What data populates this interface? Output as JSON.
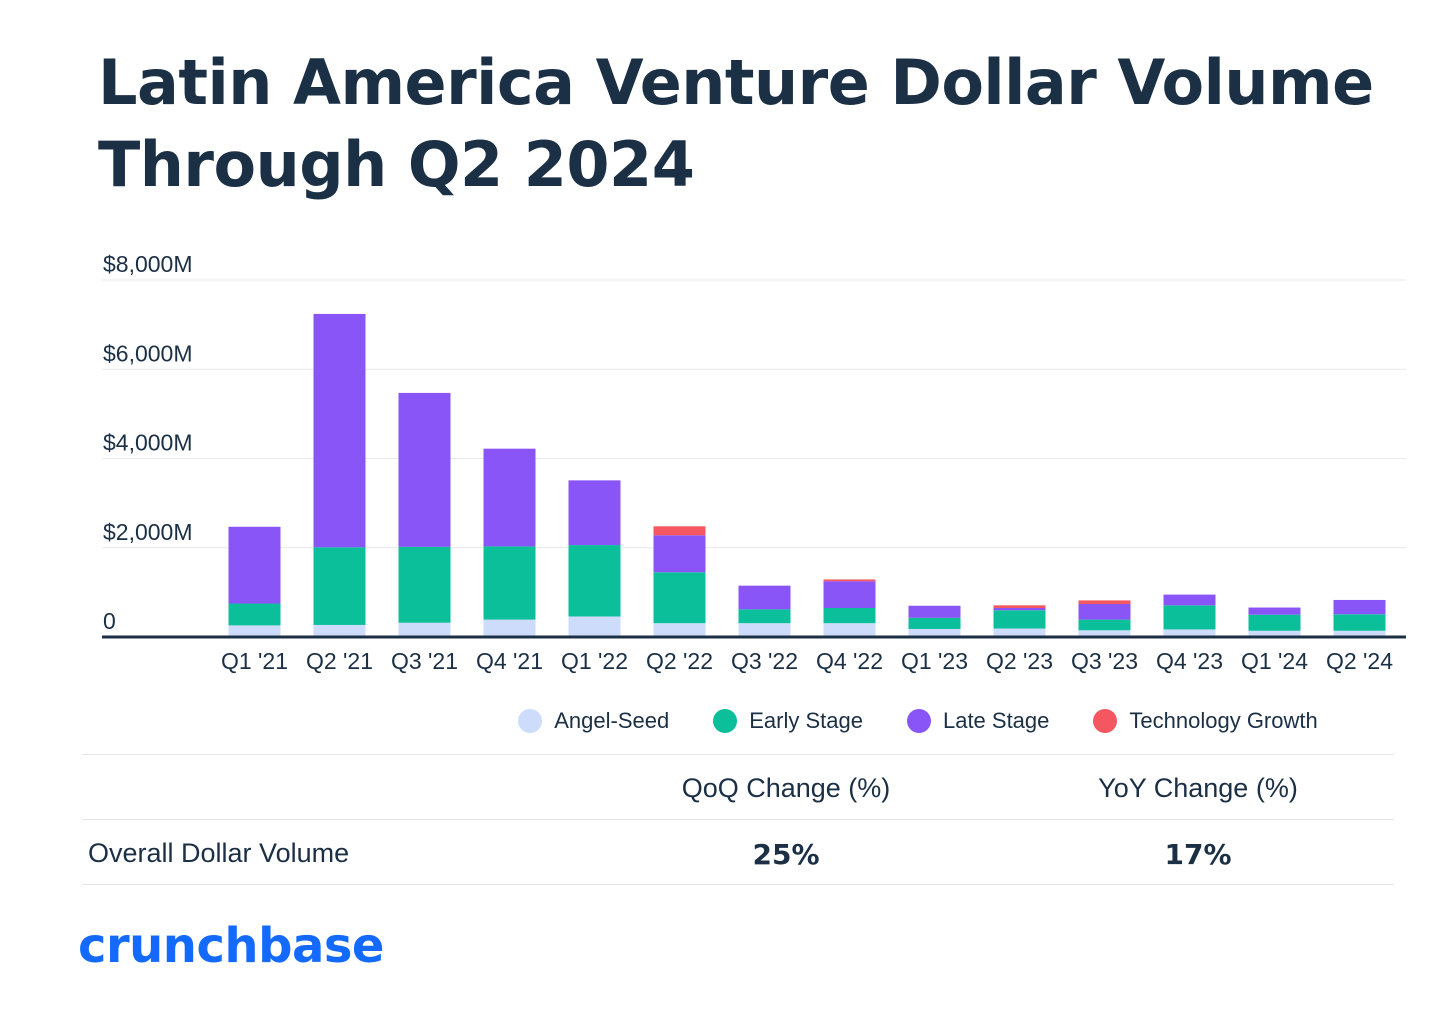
{
  "title_line1": "Latin America Venture Dollar Volume",
  "title_line2": "Through  Q2 2024",
  "legend": [
    {
      "label": "Angel-Seed",
      "color": "#cddcfa"
    },
    {
      "label": "Early Stage",
      "color": "#0bbf9b"
    },
    {
      "label": "Late Stage",
      "color": "#8a55f7"
    },
    {
      "label": "Technology Growth",
      "color": "#f4575f"
    }
  ],
  "table": {
    "headers": [
      "",
      "QoQ Change (%)",
      "YoY Change (%)"
    ],
    "row_label": "Overall Dollar Volume",
    "qoq": "25%",
    "yoy": "17%"
  },
  "logo_text": "crunchbase",
  "chart_data": {
    "type": "bar",
    "stacked": true,
    "categories": [
      "Q1 '21",
      "Q2 '21",
      "Q3 '21",
      "Q4 '21",
      "Q1 '22",
      "Q2 '22",
      "Q3 '22",
      "Q4 '22",
      "Q1 '23",
      "Q2 '23",
      "Q3 '23",
      "Q4 '23",
      "Q1 '24",
      "Q2 '24"
    ],
    "series": [
      {
        "name": "Angel-Seed",
        "color": "#cddcfa",
        "values": [
          260,
          270,
          320,
          390,
          460,
          310,
          310,
          310,
          180,
          190,
          150,
          170,
          140,
          140
        ]
      },
      {
        "name": "Early Stage",
        "color": "#0bbf9b",
        "values": [
          490,
          1740,
          1700,
          1640,
          1600,
          1140,
          310,
          340,
          250,
          410,
          240,
          540,
          360,
          370
        ]
      },
      {
        "name": "Late Stage",
        "color": "#8a55f7",
        "values": [
          1720,
          5230,
          3450,
          2190,
          1450,
          830,
          530,
          600,
          270,
          50,
          350,
          240,
          160,
          320
        ]
      },
      {
        "name": "Technology Growth",
        "color": "#f4575f",
        "values": [
          0,
          0,
          0,
          0,
          0,
          200,
          0,
          40,
          0,
          60,
          80,
          0,
          0,
          0
        ]
      }
    ],
    "ylim": [
      0,
      8000
    ],
    "yticks": [
      {
        "value": 0,
        "label": "0"
      },
      {
        "value": 2000,
        "label": "$2,000M"
      },
      {
        "value": 4000,
        "label": "$4,000M"
      },
      {
        "value": 6000,
        "label": "$6,000M"
      },
      {
        "value": 8000,
        "label": "$8,000M"
      }
    ],
    "grid": true,
    "legend_position": "bottom"
  }
}
